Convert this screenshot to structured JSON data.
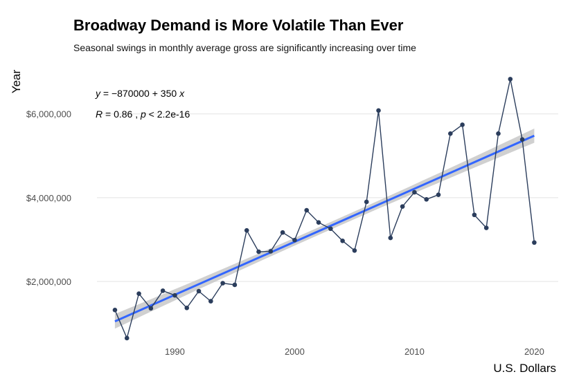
{
  "title": "Broadway Demand is More Volatile Than Ever",
  "subtitle": "Seasonal swings in monthly average gross are significantly increasing over time",
  "chart_data": {
    "type": "line",
    "xlabel": "U.S. Dollars",
    "ylabel": "Year",
    "xlim": [
      1983.5,
      2022
    ],
    "ylim": [
      550000,
      7150000
    ],
    "x_ticks": [
      1990,
      2000,
      2010,
      2020
    ],
    "y_ticks": [
      2000000,
      4000000,
      6000000
    ],
    "y_tick_labels": [
      "$2,000,000",
      "$4,000,000",
      "$6,000,000"
    ],
    "grid": true,
    "line_color": "#2b3d5c",
    "trend_color": "#3366ff",
    "band_color": "#c8c8c8",
    "series": [
      {
        "x": [
          1985,
          1986,
          1987,
          1988,
          1989,
          1990,
          1991,
          1992,
          1993,
          1994,
          1995,
          1996,
          1997,
          1998,
          1999,
          2000,
          2001,
          2002,
          2003,
          2004,
          2005,
          2006,
          2007,
          2008,
          2009,
          2010,
          2011,
          2012,
          2013,
          2014,
          2015,
          2016,
          2017,
          2018,
          2019,
          2020
        ],
        "values": [
          1320000,
          650000,
          1710000,
          1360000,
          1780000,
          1670000,
          1370000,
          1770000,
          1530000,
          1960000,
          1920000,
          3220000,
          2710000,
          2720000,
          3170000,
          2990000,
          3700000,
          3410000,
          3260000,
          2970000,
          2740000,
          3900000,
          6080000,
          3040000,
          3790000,
          4130000,
          3960000,
          4070000,
          5530000,
          5740000,
          3590000,
          3280000,
          5530000,
          6830000,
          5390000,
          2930000
        ]
      }
    ],
    "trend": {
      "x": [
        1985,
        2020
      ],
      "values": [
        1050000,
        5480000
      ]
    },
    "band_halfwidth": [
      175000,
      90000,
      170000
    ],
    "annotations": {
      "equation": {
        "lhs": "y",
        "rhs": " = −870000 + 350 ",
        "var": "x"
      },
      "stats": {
        "r_label": "R",
        "r_value": " = 0.86 , ",
        "p_label": "p",
        "p_value": " < 2.2e-16"
      }
    }
  }
}
